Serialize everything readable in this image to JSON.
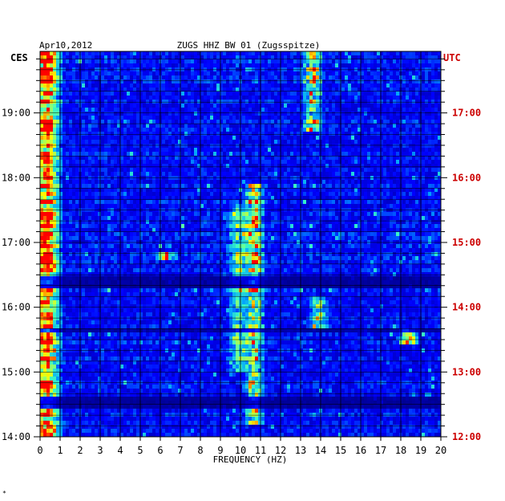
{
  "chart_data": {
    "type": "heatmap",
    "date": "Apr10,2012",
    "title": "ZUGS HHZ BW 01 (Zugsspitze)",
    "left_axis_title": "CES",
    "right_axis_title": "UTC",
    "xlabel": "FREQUENCY (HZ)",
    "x_ticks": [
      0,
      1,
      2,
      3,
      4,
      5,
      6,
      7,
      8,
      9,
      10,
      11,
      12,
      13,
      14,
      15,
      16,
      17,
      18,
      19,
      20
    ],
    "xlim": [
      0,
      20
    ],
    "time_range_local_hours": [
      14.0,
      19.95
    ],
    "left_ticks": [
      {
        "hour": 14,
        "label": "14:00"
      },
      {
        "hour": 15,
        "label": "15:00"
      },
      {
        "hour": 16,
        "label": "16:00"
      },
      {
        "hour": 17,
        "label": "17:00"
      },
      {
        "hour": 18,
        "label": "18:00"
      },
      {
        "hour": 19,
        "label": "19:00"
      }
    ],
    "right_ticks": [
      {
        "hour": 14,
        "label": "12:00"
      },
      {
        "hour": 15,
        "label": "13:00"
      },
      {
        "hour": 16,
        "label": "14:00"
      },
      {
        "hour": 17,
        "label": "15:00"
      },
      {
        "hour": 18,
        "label": "16:00"
      },
      {
        "hour": 19,
        "label": "17:00"
      }
    ],
    "colormap": [
      "#00007f",
      "#0000ff",
      "#00a0ff",
      "#40ffbf",
      "#ffff00",
      "#ff0000"
    ],
    "grid": true,
    "hotspots": [
      {
        "freq": 0.4,
        "hour_from": 14.0,
        "hour_to": 19.95,
        "intensity": 0.55
      },
      {
        "freq": 10.7,
        "hour_from": 14.2,
        "hour_to": 17.9,
        "intensity": 0.8
      },
      {
        "freq": 9.9,
        "hour_from": 15.0,
        "hour_to": 17.6,
        "intensity": 0.55
      },
      {
        "freq": 13.6,
        "hour_from": 18.7,
        "hour_to": 19.95,
        "intensity": 0.7
      },
      {
        "freq": 13.9,
        "hour_from": 15.7,
        "hour_to": 16.2,
        "intensity": 0.65
      },
      {
        "freq": 18.4,
        "hour_from": 15.4,
        "hour_to": 15.7,
        "intensity": 0.75
      },
      {
        "freq": 6.3,
        "hour_from": 16.7,
        "hour_to": 16.85,
        "intensity": 0.6
      }
    ],
    "quiet_rows_hour": [
      16.35,
      16.45,
      15.65,
      14.55,
      14.45
    ]
  },
  "footer_mark": "*"
}
